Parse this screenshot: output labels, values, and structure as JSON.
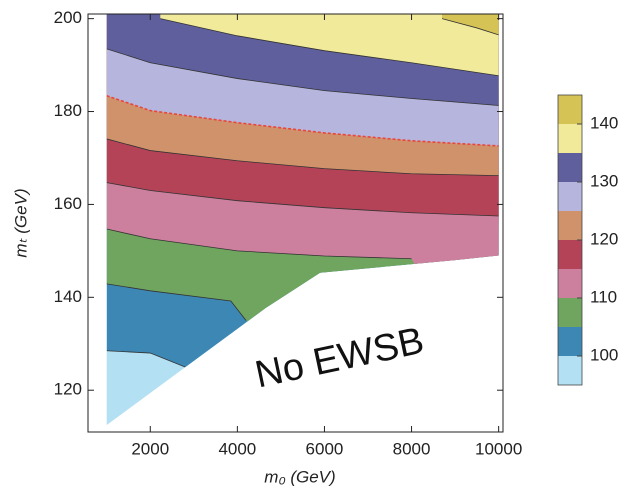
{
  "chart_data": {
    "type": "contour",
    "xlabel": "m₀ (GeV)",
    "ylabel": "mₜ (GeV)",
    "annotation": "No EWSB",
    "xlim": [
      570,
      10100
    ],
    "ylim": [
      111,
      201
    ],
    "xticks": [
      2000,
      4000,
      6000,
      8000,
      10000
    ],
    "yticks": [
      120,
      140,
      160,
      180,
      200
    ],
    "levels": [
      95,
      100,
      105,
      110,
      115,
      120,
      125,
      130,
      135,
      140,
      145
    ],
    "colors": [
      "#b3e0f2",
      "#3c87b4",
      "#6fa55e",
      "#cd7f9e",
      "#b54358",
      "#d0926a",
      "#b6b5dd",
      "#5f5f9e",
      "#f1ea9a",
      "#d6c355"
    ],
    "colorbar_ticks": [
      100,
      110,
      120,
      130,
      140
    ],
    "contour_color": "#333333",
    "contours": [
      {
        "level": 100,
        "x": [
          1000,
          2000,
          2800
        ],
        "y": [
          128.5,
          128,
          125
        ]
      },
      {
        "level": 105,
        "x": [
          1000,
          2000,
          3850,
          4200
        ],
        "y": [
          142.9,
          141.4,
          139.2,
          135
        ]
      },
      {
        "level": 110,
        "x": [
          1000,
          2000,
          4000,
          6000,
          8000
        ],
        "y": [
          154.7,
          152.6,
          150,
          148.9,
          148.3
        ]
      },
      {
        "level": 115,
        "x": [
          1000,
          2000,
          4000,
          6000,
          8000,
          10000
        ],
        "y": [
          164.7,
          163,
          160.8,
          159.3,
          158.2,
          157.5
        ]
      },
      {
        "level": 120,
        "x": [
          1000,
          2000,
          4000,
          6000,
          8000,
          10000
        ],
        "y": [
          174.1,
          171.6,
          169.4,
          167.7,
          166.6,
          166.2
        ]
      },
      {
        "level": 125,
        "x": [
          1000,
          2000,
          4000,
          6000,
          8000,
          10000
        ],
        "y": [
          183.4,
          180.2,
          177.6,
          175.4,
          173.7,
          172.6
        ],
        "color": "#e8463c",
        "dashed": true
      },
      {
        "level": 130,
        "x": [
          1000,
          2000,
          4000,
          6000,
          8000,
          10000
        ],
        "y": [
          193.5,
          190.5,
          187.1,
          184.5,
          182.8,
          181.3
        ]
      },
      {
        "level": 135,
        "x": [
          2230,
          4000,
          6000,
          8000,
          10000
        ],
        "y": [
          200,
          196.3,
          193.1,
          190.5,
          187.7
        ]
      },
      {
        "level": 140,
        "x": [
          8700,
          9500,
          10000
        ],
        "y": [
          200,
          198,
          196.5
        ]
      }
    ],
    "no_ewsb_boundary": {
      "x": [
        1000,
        4650,
        5900,
        9000,
        10000
      ],
      "y": [
        112.5,
        137.7,
        145.3,
        148,
        149
      ]
    }
  }
}
